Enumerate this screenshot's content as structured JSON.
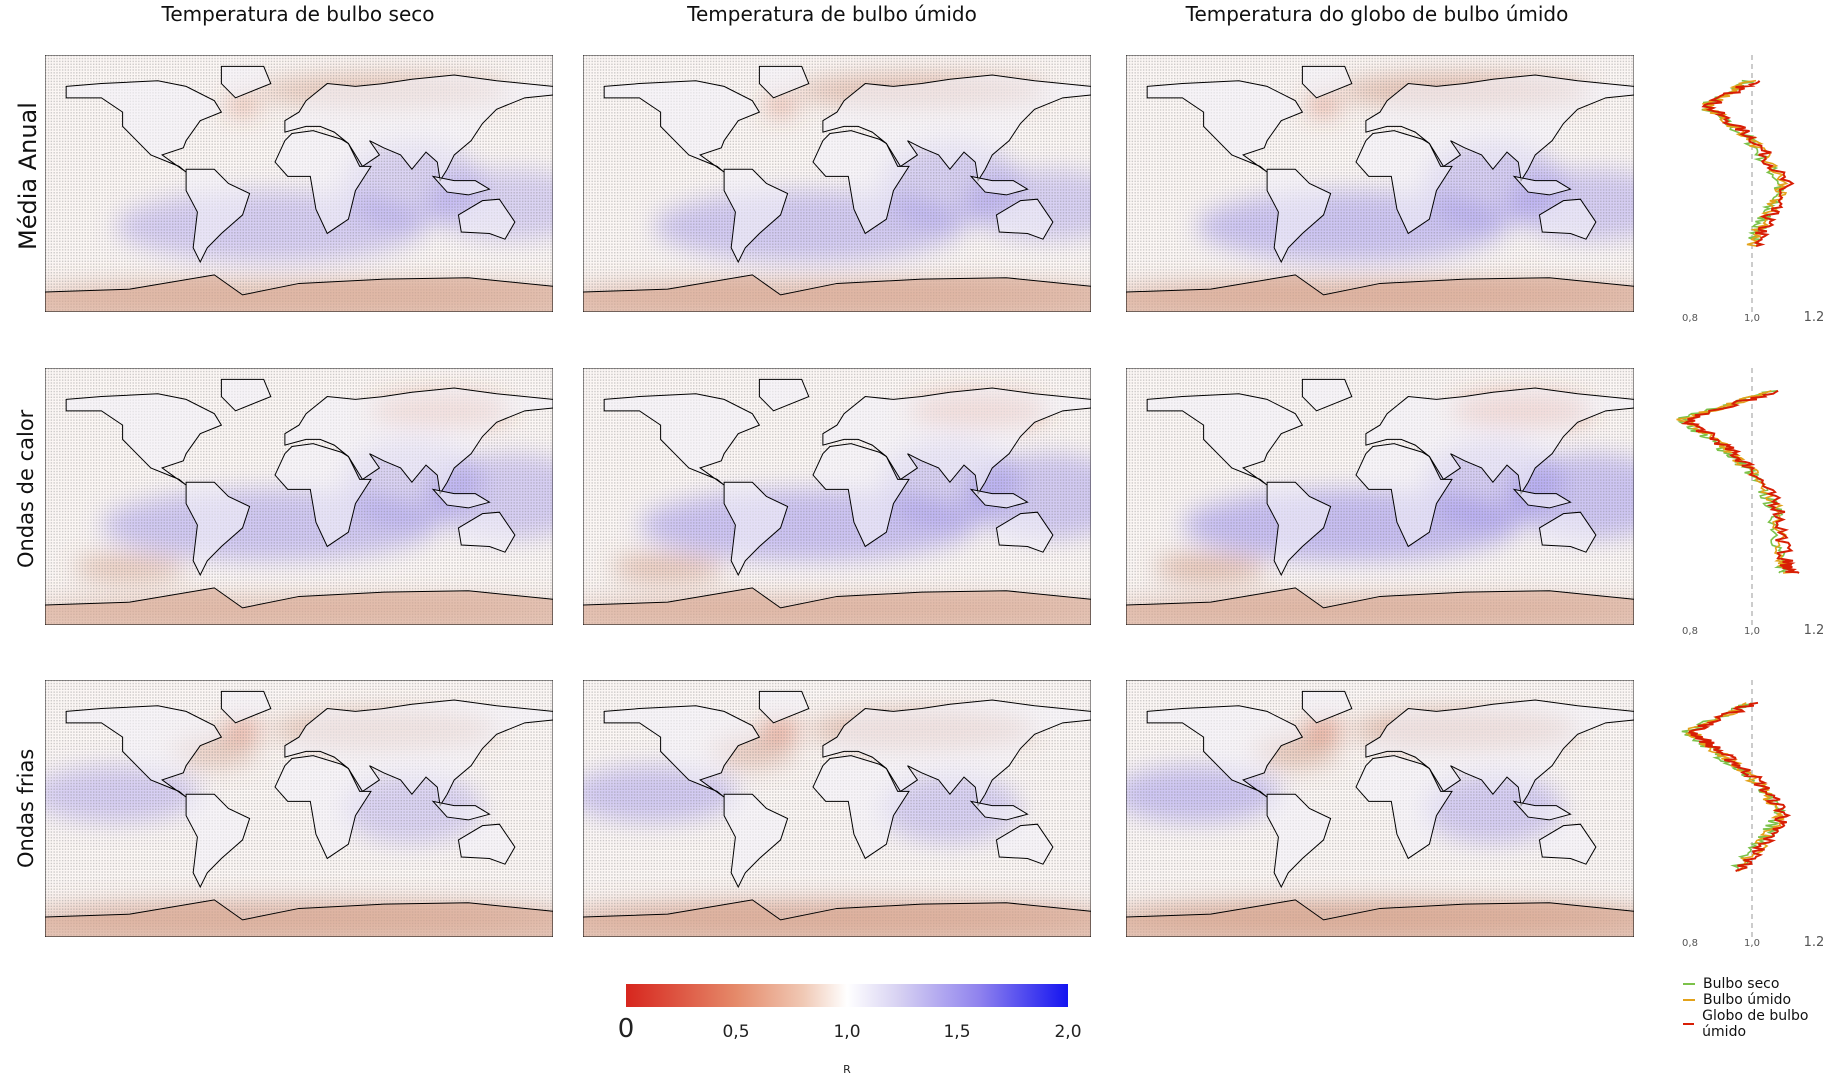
{
  "columns": [
    "Temperatura de bulbo seco",
    "Temperatura de bulbo úmido",
    "Temperatura do globo de bulbo úmido"
  ],
  "rows": [
    "Média Anual",
    "Ondas de calor",
    "Ondas frias"
  ],
  "colorbar": {
    "ticks": [
      "0",
      "0,5",
      "1,0",
      "1,5",
      "2,0"
    ],
    "label": "R",
    "colors": {
      "low": "#d7261e",
      "mid": "#ffffff",
      "high": "#1414f0"
    }
  },
  "profile_axis": {
    "ticks": [
      "0,8",
      "1,0",
      "1.2"
    ]
  },
  "legend": [
    {
      "label": "Bulbo seco",
      "color": "#7cc24a"
    },
    {
      "label": "Bulbo úmido",
      "color": "#e3a21a"
    },
    {
      "label": "Globo de bulbo úmido",
      "color": "#d81e05"
    }
  ],
  "chart_data": {
    "type": "line",
    "xlabel": "",
    "ylabel": "",
    "xlim": [
      0.8,
      1.2
    ],
    "reference_line": 1.0,
    "profiles": [
      {
        "row": "Média Anual",
        "points_lat_R": [
          [
            72,
            1.0
          ],
          [
            54,
            0.85
          ],
          [
            31,
            1.0
          ],
          [
            0,
            1.1
          ],
          [
            -22,
            1.05
          ],
          [
            -45,
            1.0
          ]
        ]
      },
      {
        "row": "Ondas de calor",
        "points_lat_R": [
          [
            74,
            1.07
          ],
          [
            54,
            0.78
          ],
          [
            36,
            0.9
          ],
          [
            18,
            1.0
          ],
          [
            -9,
            1.08
          ],
          [
            -45,
            1.1
          ],
          [
            -54,
            1.12
          ]
        ]
      },
      {
        "row": "Ondas frias",
        "points_lat_R": [
          [
            74,
            1.0
          ],
          [
            54,
            0.8
          ],
          [
            38,
            0.9
          ],
          [
            22,
            1.0
          ],
          [
            -4,
            1.1
          ],
          [
            -20,
            1.05
          ],
          [
            -45,
            0.95
          ]
        ]
      }
    ]
  }
}
